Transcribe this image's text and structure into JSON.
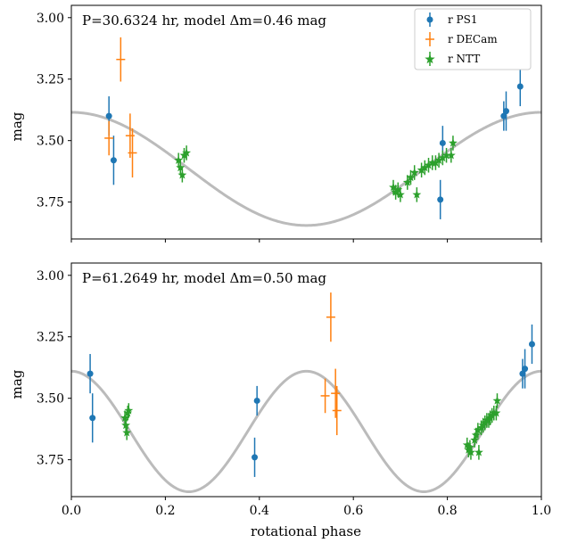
{
  "chart_data": [
    {
      "type": "scatter",
      "annotation": "P=30.6324 hr, model Δm=0.46 mag",
      "ylabel": "mag",
      "xlabel": "",
      "xlim": [
        0.0,
        1.0
      ],
      "ylim": [
        3.9,
        2.95
      ],
      "y_inverted": true,
      "yticks": [
        3.0,
        3.25,
        3.5,
        3.75
      ],
      "ytick_labels": [
        "3.00",
        "3.25",
        "3.50",
        "3.75"
      ],
      "legend": {
        "placement": "top-right",
        "entries": [
          "r PS1",
          "r DECam",
          "r NTT"
        ]
      },
      "model": {
        "color": "#bbbbbb",
        "mean": 3.615,
        "amplitude": 0.23,
        "cycles_per_phase": 1,
        "phase_offset": 0.5
      },
      "series": [
        {
          "name": "r PS1",
          "marker": "circle",
          "color": "#1f77b4",
          "x": [
            0.08,
            0.09,
            0.79,
            0.785,
            0.92,
            0.925,
            0.955
          ],
          "y": [
            3.4,
            3.58,
            3.51,
            3.74,
            3.4,
            3.38,
            3.28
          ],
          "yerr": [
            0.08,
            0.1,
            0.07,
            0.08,
            0.06,
            0.08,
            0.08
          ]
        },
        {
          "name": "r DECam",
          "marker": "plus",
          "color": "#ff7f0e",
          "x": [
            0.08,
            0.105,
            0.125,
            0.13
          ],
          "y": [
            3.49,
            3.17,
            3.48,
            3.55
          ],
          "yerr": [
            0.07,
            0.09,
            0.09,
            0.1
          ]
        },
        {
          "name": "r NTT",
          "marker": "star",
          "color": "#2ca02c",
          "x": [
            0.228,
            0.232,
            0.236,
            0.24,
            0.245,
            0.685,
            0.69,
            0.695,
            0.7,
            0.715,
            0.722,
            0.73,
            0.735,
            0.745,
            0.752,
            0.76,
            0.768,
            0.775,
            0.782,
            0.79,
            0.798,
            0.808,
            0.812
          ],
          "y": [
            3.58,
            3.61,
            3.64,
            3.56,
            3.55,
            3.69,
            3.71,
            3.7,
            3.72,
            3.67,
            3.65,
            3.63,
            3.72,
            3.62,
            3.61,
            3.6,
            3.59,
            3.59,
            3.58,
            3.57,
            3.56,
            3.56,
            3.51
          ],
          "yerr": [
            0.03,
            0.03,
            0.03,
            0.03,
            0.03,
            0.03,
            0.03,
            0.03,
            0.03,
            0.03,
            0.03,
            0.03,
            0.03,
            0.03,
            0.03,
            0.03,
            0.03,
            0.03,
            0.03,
            0.03,
            0.03,
            0.03,
            0.03
          ]
        }
      ]
    },
    {
      "type": "scatter",
      "annotation": "P=61.2649 hr, model Δm=0.50 mag",
      "ylabel": "mag",
      "xlabel": "rotational phase",
      "xlim": [
        0.0,
        1.0
      ],
      "ylim": [
        3.9,
        2.95
      ],
      "y_inverted": true,
      "yticks": [
        3.0,
        3.25,
        3.5,
        3.75
      ],
      "ytick_labels": [
        "3.00",
        "3.25",
        "3.50",
        "3.75"
      ],
      "xticks": [
        0.0,
        0.2,
        0.4,
        0.6,
        0.8,
        1.0
      ],
      "xtick_labels": [
        "0.0",
        "0.2",
        "0.4",
        "0.6",
        "0.8",
        "1.0"
      ],
      "model": {
        "color": "#bbbbbb",
        "mean": 3.635,
        "amplitude": 0.245,
        "cycles_per_phase": 2,
        "phase_offset": 0.25
      },
      "series": [
        {
          "name": "r PS1",
          "marker": "circle",
          "color": "#1f77b4",
          "x": [
            0.04,
            0.045,
            0.395,
            0.39,
            0.96,
            0.965,
            0.98
          ],
          "y": [
            3.4,
            3.58,
            3.51,
            3.74,
            3.4,
            3.38,
            3.28
          ],
          "yerr": [
            0.08,
            0.1,
            0.06,
            0.08,
            0.06,
            0.08,
            0.08
          ]
        },
        {
          "name": "r DECam",
          "marker": "plus",
          "color": "#ff7f0e",
          "x": [
            0.54,
            0.552,
            0.562,
            0.565
          ],
          "y": [
            3.49,
            3.17,
            3.48,
            3.55
          ],
          "yerr": [
            0.07,
            0.1,
            0.1,
            0.1
          ]
        },
        {
          "name": "r NTT",
          "marker": "star",
          "color": "#2ca02c",
          "x": [
            0.114,
            0.116,
            0.118,
            0.12,
            0.122,
            0.842,
            0.845,
            0.848,
            0.85,
            0.858,
            0.861,
            0.865,
            0.867,
            0.872,
            0.876,
            0.88,
            0.884,
            0.888,
            0.891,
            0.895,
            0.899,
            0.904,
            0.906
          ],
          "y": [
            3.58,
            3.61,
            3.64,
            3.56,
            3.55,
            3.69,
            3.71,
            3.7,
            3.72,
            3.67,
            3.65,
            3.63,
            3.72,
            3.62,
            3.61,
            3.6,
            3.59,
            3.59,
            3.58,
            3.57,
            3.56,
            3.56,
            3.51
          ],
          "yerr": [
            0.03,
            0.03,
            0.03,
            0.03,
            0.03,
            0.03,
            0.03,
            0.03,
            0.03,
            0.03,
            0.03,
            0.03,
            0.03,
            0.03,
            0.03,
            0.03,
            0.03,
            0.03,
            0.03,
            0.03,
            0.03,
            0.03,
            0.03
          ]
        }
      ]
    }
  ]
}
